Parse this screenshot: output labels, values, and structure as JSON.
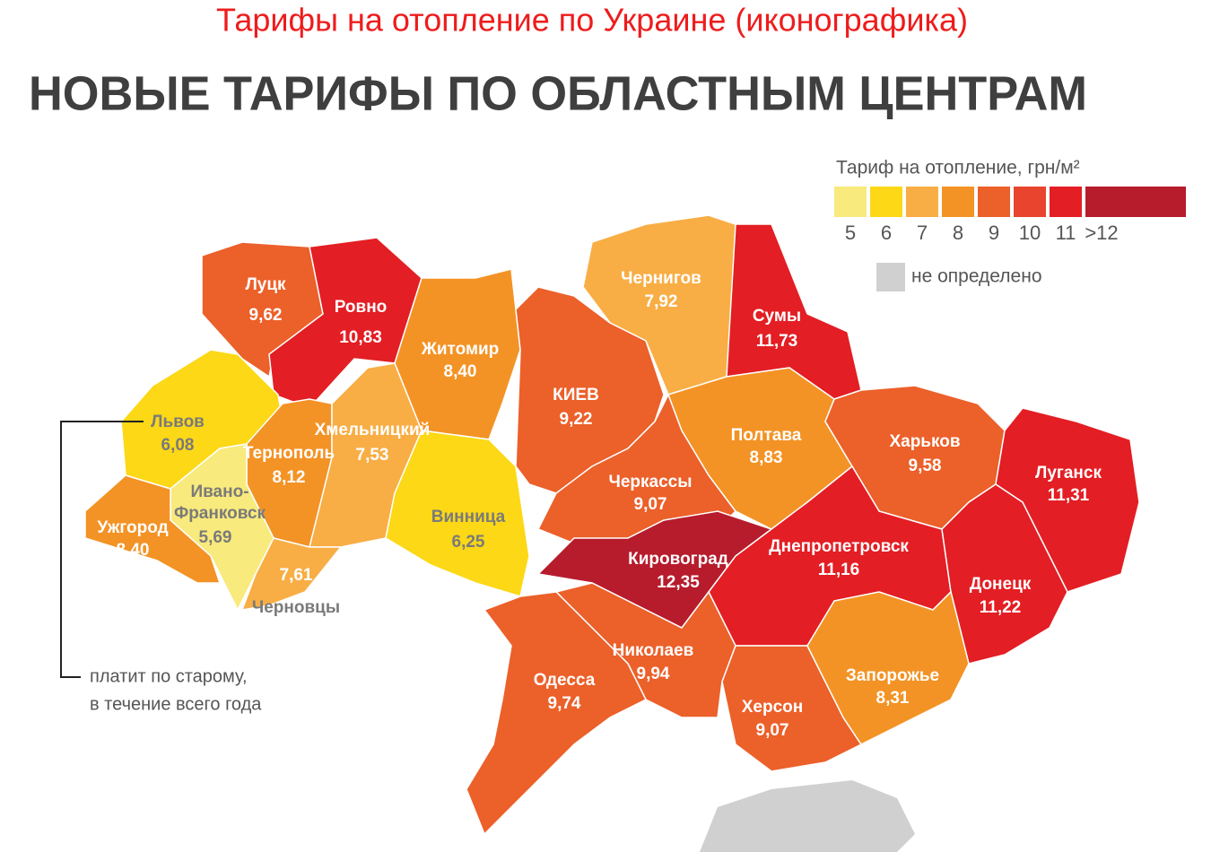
{
  "page_title": "Тарифы на отопление по Украине (иконографика)",
  "heading": "НОВЫЕ ТАРИФЫ ПО ОБЛАСТНЫМ ЦЕНТРАМ",
  "legend": {
    "title": "Тариф на отопление, грн/м²",
    "items": [
      {
        "label": "5",
        "color": "#f8ea7c"
      },
      {
        "label": "6",
        "color": "#fcd816"
      },
      {
        "label": "7",
        "color": "#f8ae45"
      },
      {
        "label": "8",
        "color": "#f39325"
      },
      {
        "label": "9",
        "color": "#ec602a"
      },
      {
        "label": "10",
        "color": "#e9452e"
      },
      {
        "label": "11",
        "color": "#e31e24"
      },
      {
        "label": ">12",
        "color": "#b71c2c"
      }
    ],
    "undefined": {
      "label": "не определено",
      "color": "#d0d0d0"
    }
  },
  "annotation": [
    "платит по старому,",
    "в течение всего года"
  ],
  "map": {
    "regions": [
      {
        "name": "Луцк",
        "value": "9,62",
        "color": "#ec602a"
      },
      {
        "name": "Ровно",
        "value": "10,83",
        "color": "#e31e24"
      },
      {
        "name": "Житомир",
        "value": "8,40",
        "color": "#f39325"
      },
      {
        "name": "Чернигов",
        "value": "7,92",
        "color": "#f8ae45"
      },
      {
        "name": "Сумы",
        "value": "11,73",
        "color": "#e31e24"
      },
      {
        "name": "Львов",
        "value": "6,08",
        "color": "#fcd816"
      },
      {
        "name": "Тернополь",
        "value": "8,12",
        "color": "#f39325"
      },
      {
        "name": "Хмельницкий",
        "value": "7,53",
        "color": "#f8ae45"
      },
      {
        "name": "Винница",
        "value": "6,25",
        "color": "#fcd816"
      },
      {
        "name": [
          "Ивано-",
          "Франковск"
        ],
        "value": "5,69",
        "color": "#f8ea7c"
      },
      {
        "name": "Ужгород",
        "value": "8,40",
        "color": "#f39325"
      },
      {
        "name": "Черновцы",
        "value": "7,61",
        "color": "#f8ae45"
      },
      {
        "name": "КИЕВ",
        "value": "9,22",
        "color": "#ec602a"
      },
      {
        "name": "Черкассы",
        "value": "9,07",
        "color": "#ec602a"
      },
      {
        "name": "Полтава",
        "value": "8,83",
        "color": "#f39325"
      },
      {
        "name": "Харьков",
        "value": "9,58",
        "color": "#ec602a"
      },
      {
        "name": "Луганск",
        "value": "11,31",
        "color": "#e31e24"
      },
      {
        "name": "Кировоград",
        "value": "12,35",
        "color": "#b71c2c"
      },
      {
        "name": "Днепропетровск",
        "value": "11,16",
        "color": "#e31e24"
      },
      {
        "name": "Донецк",
        "value": "11,22",
        "color": "#e31e24"
      },
      {
        "name": "Николаев",
        "value": "9,94",
        "color": "#ec602a"
      },
      {
        "name": "Одесса",
        "value": "9,74",
        "color": "#ec602a"
      },
      {
        "name": "Херсон",
        "value": "9,07",
        "color": "#ec602a"
      },
      {
        "name": "Запорожье",
        "value": "8,31",
        "color": "#f39325"
      }
    ],
    "crimea_color": "#d0d0d0"
  }
}
